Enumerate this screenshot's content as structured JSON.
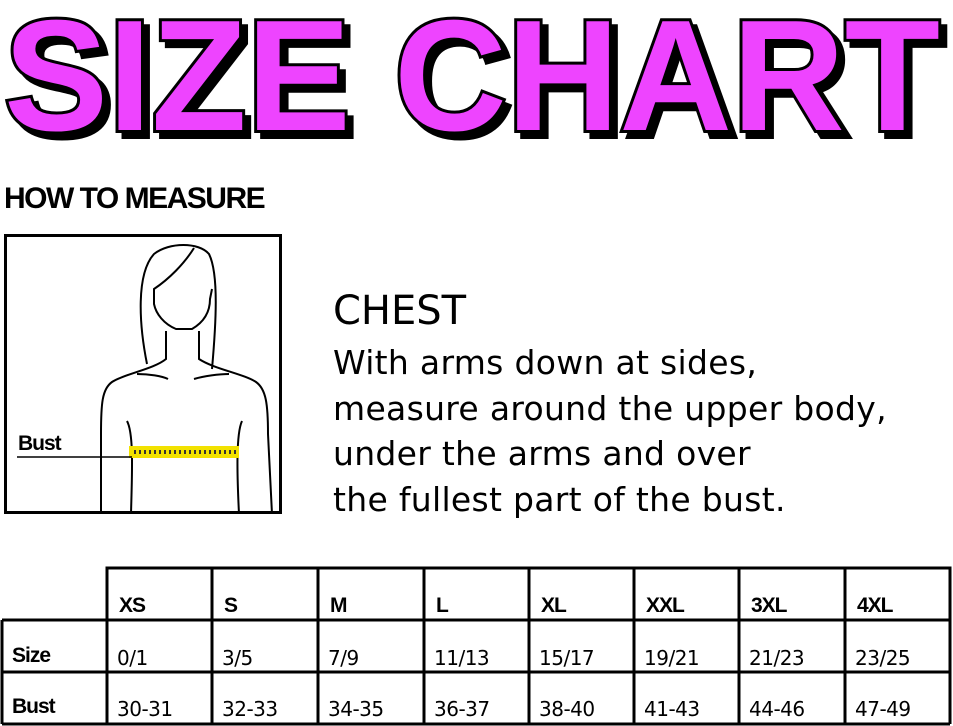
{
  "title": "SIZE CHART",
  "colors": {
    "title_fill": "#EE44FF",
    "title_outline": "#000000",
    "tape": "#F2E200"
  },
  "how_to_measure": "HOW TO MEASURE",
  "figure": {
    "label": "Bust"
  },
  "chest": {
    "heading": "CHEST",
    "lines": [
      "With arms down at sides,",
      "measure around the upper body,",
      "under the arms and over",
      "the fullest part of the bust."
    ]
  },
  "table": {
    "columns": [
      "XS",
      "S",
      "M",
      "L",
      "XL",
      "XXL",
      "3XL",
      "4XL"
    ],
    "rows": [
      {
        "label": "Size",
        "values": [
          "0/1",
          "3/5",
          "7/9",
          "11/13",
          "15/17",
          "19/21",
          "21/23",
          "23/25"
        ]
      },
      {
        "label": "Bust",
        "values": [
          "30-31",
          "32-33",
          "34-35",
          "36-37",
          "38-40",
          "41-43",
          "44-46",
          "47-49"
        ]
      }
    ]
  }
}
